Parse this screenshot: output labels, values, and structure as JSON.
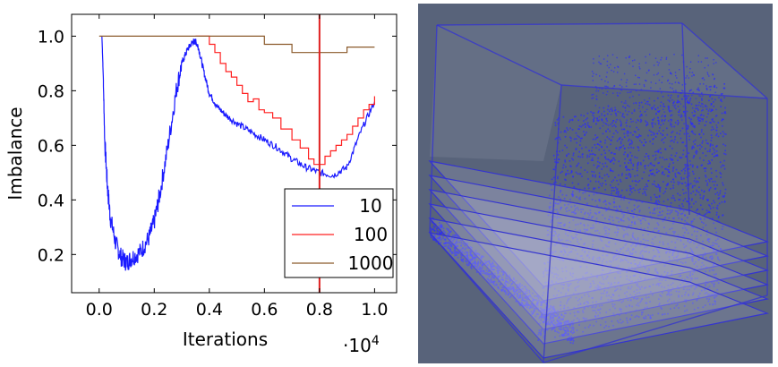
{
  "chart_data": {
    "type": "line",
    "xlabel": "Iterations",
    "ylabel": "Imbalance",
    "x_scale_label": "·10",
    "x_scale_exponent": "4",
    "xlim": [
      -0.1,
      1.08
    ],
    "ylim": [
      0.06,
      1.08
    ],
    "xticks": [
      "0.0",
      "0.2",
      "0.4",
      "0.6",
      "0.8",
      "1.0"
    ],
    "yticks": [
      "0.2",
      "0.4",
      "0.6",
      "0.8",
      "1.0"
    ],
    "xtick_values": [
      0.0,
      0.2,
      0.4,
      0.6,
      0.8,
      1.0
    ],
    "ytick_values": [
      0.2,
      0.4,
      0.6,
      0.8,
      1.0
    ],
    "grid": false,
    "legend_position": "bottom-right",
    "vertical_line": {
      "x": 0.8,
      "color": "#e02020"
    },
    "series": [
      {
        "name": "10",
        "color": "#1a1aff",
        "noise": 0.035,
        "x": [
          0.01,
          0.015,
          0.02,
          0.03,
          0.04,
          0.06,
          0.08,
          0.1,
          0.12,
          0.15,
          0.18,
          0.2,
          0.22,
          0.25,
          0.28,
          0.3,
          0.32,
          0.34,
          0.35,
          0.36,
          0.38,
          0.4,
          0.43,
          0.46,
          0.5,
          0.55,
          0.6,
          0.65,
          0.7,
          0.75,
          0.8,
          0.85,
          0.9,
          0.95,
          1.0
        ],
        "y": [
          1.0,
          0.85,
          0.62,
          0.45,
          0.34,
          0.24,
          0.19,
          0.17,
          0.19,
          0.21,
          0.26,
          0.32,
          0.42,
          0.6,
          0.8,
          0.9,
          0.95,
          0.98,
          0.98,
          0.96,
          0.87,
          0.79,
          0.74,
          0.71,
          0.68,
          0.65,
          0.62,
          0.59,
          0.55,
          0.52,
          0.5,
          0.49,
          0.52,
          0.65,
          0.76
        ]
      },
      {
        "name": "100",
        "color": "#ff2020",
        "step": true,
        "x": [
          0.35,
          0.39,
          0.4,
          0.42,
          0.44,
          0.46,
          0.48,
          0.5,
          0.52,
          0.54,
          0.56,
          0.58,
          0.6,
          0.63,
          0.66,
          0.7,
          0.73,
          0.76,
          0.78,
          0.8,
          0.82,
          0.84,
          0.86,
          0.88,
          0.9,
          0.92,
          0.94,
          0.96,
          0.98,
          1.0
        ],
        "y": [
          1.0,
          1.0,
          0.97,
          0.94,
          0.9,
          0.87,
          0.85,
          0.82,
          0.79,
          0.76,
          0.77,
          0.73,
          0.72,
          0.7,
          0.66,
          0.62,
          0.59,
          0.55,
          0.53,
          0.53,
          0.56,
          0.58,
          0.6,
          0.62,
          0.64,
          0.67,
          0.7,
          0.73,
          0.75,
          0.78
        ]
      },
      {
        "name": "1000",
        "color": "#8b5a2b",
        "step": true,
        "x": [
          0.0,
          0.6,
          0.7,
          0.9,
          1.0
        ],
        "y": [
          1.0,
          0.97,
          0.94,
          0.96,
          0.96
        ]
      }
    ]
  },
  "render_panel": {
    "background": "#58637a",
    "box_edge_color": "#3434d0",
    "point_color": "#2a2aff",
    "layer_color": "#c8c8e8"
  }
}
